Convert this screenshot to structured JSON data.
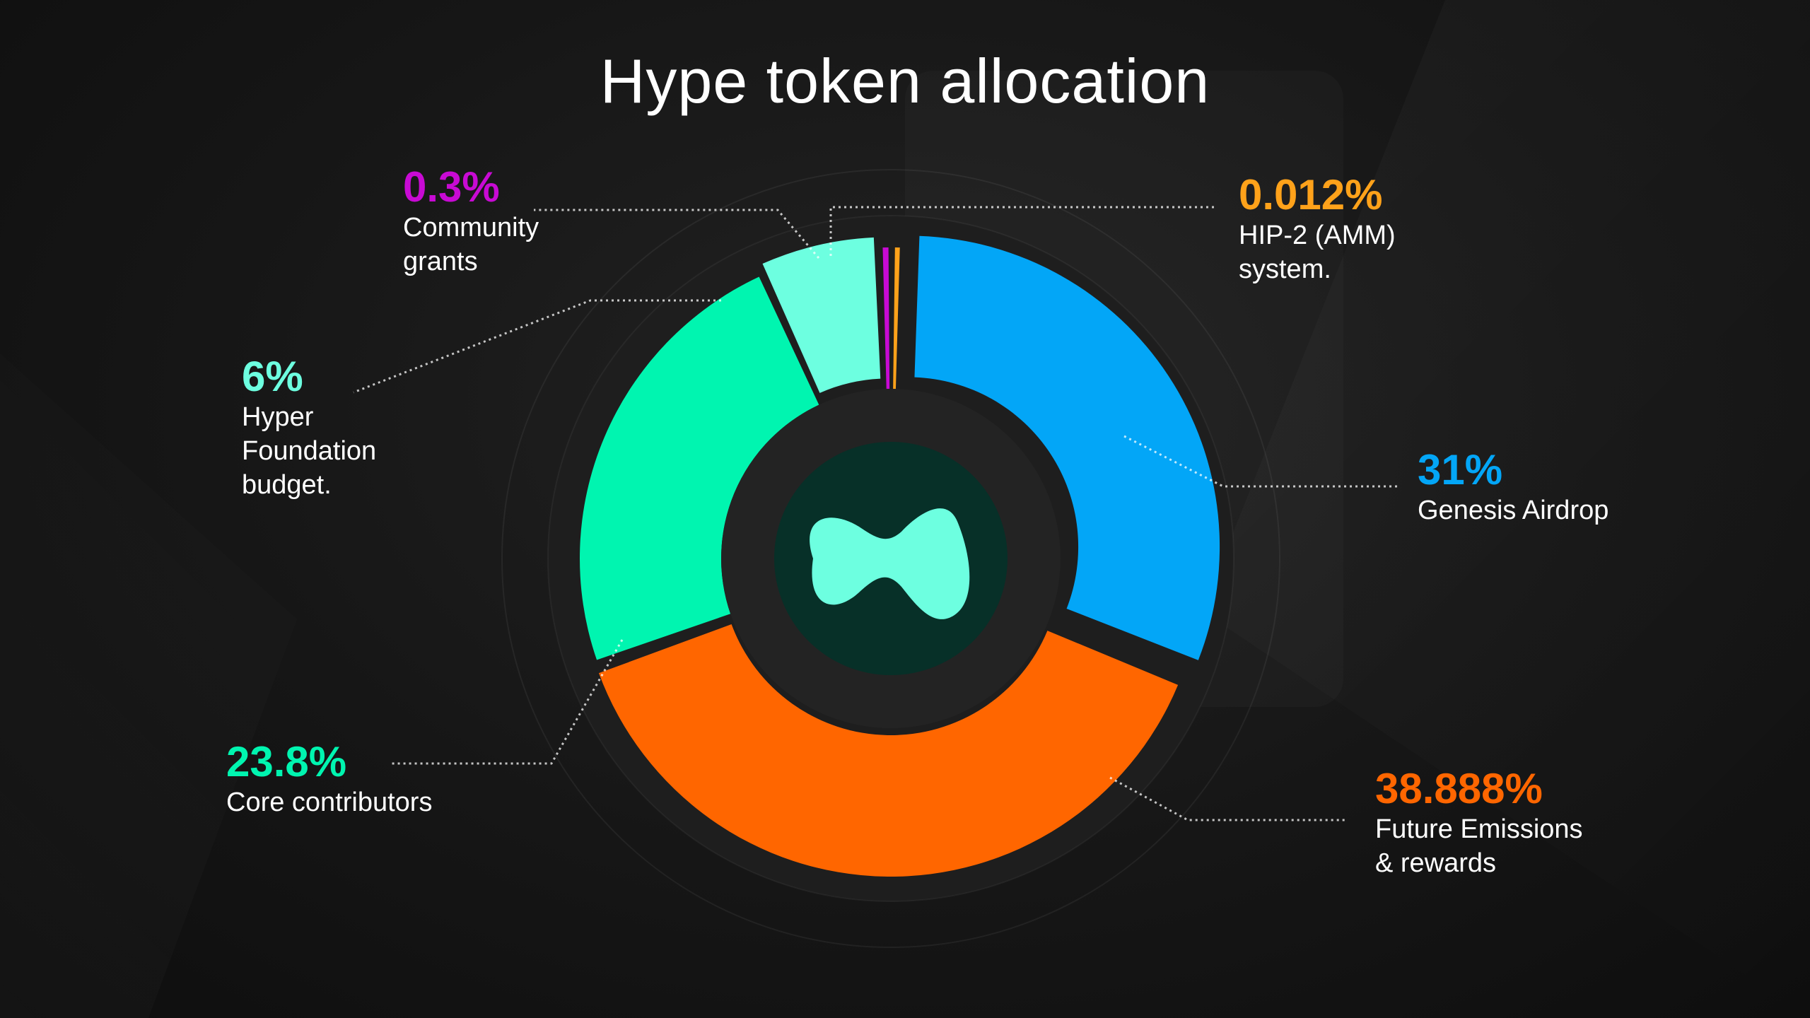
{
  "chart_data": {
    "type": "pie",
    "title": "Hype token allocation",
    "slices": [
      {
        "name": "Genesis Airdrop",
        "value": 31,
        "label": "31%",
        "color": "#03a6f7"
      },
      {
        "name": "Future Emissions\n& rewards",
        "value": 38.888,
        "label": "38.888%",
        "color": "#ff6600"
      },
      {
        "name": "Core contributors",
        "value": 23.8,
        "label": "23.8%",
        "color": "#00f5b0"
      },
      {
        "name": "Hyper\nFoundation\nbudget.",
        "value": 6,
        "label": "6%",
        "color": "#6dffe0"
      },
      {
        "name": "Community\ngrants",
        "value": 0.3,
        "label": "0.3%",
        "color": "#c80ad4"
      },
      {
        "name": "HIP-2 (AMM)\nsystem.",
        "value": 0.012,
        "label": "0.012%",
        "color": "#ffa21a"
      }
    ]
  },
  "colors": {
    "background": "#161616",
    "center_logo": "#6dffe0",
    "center_disc": "#073028",
    "inner_ring": "#232323"
  },
  "center_icon": "hyperliquid-logo-icon"
}
